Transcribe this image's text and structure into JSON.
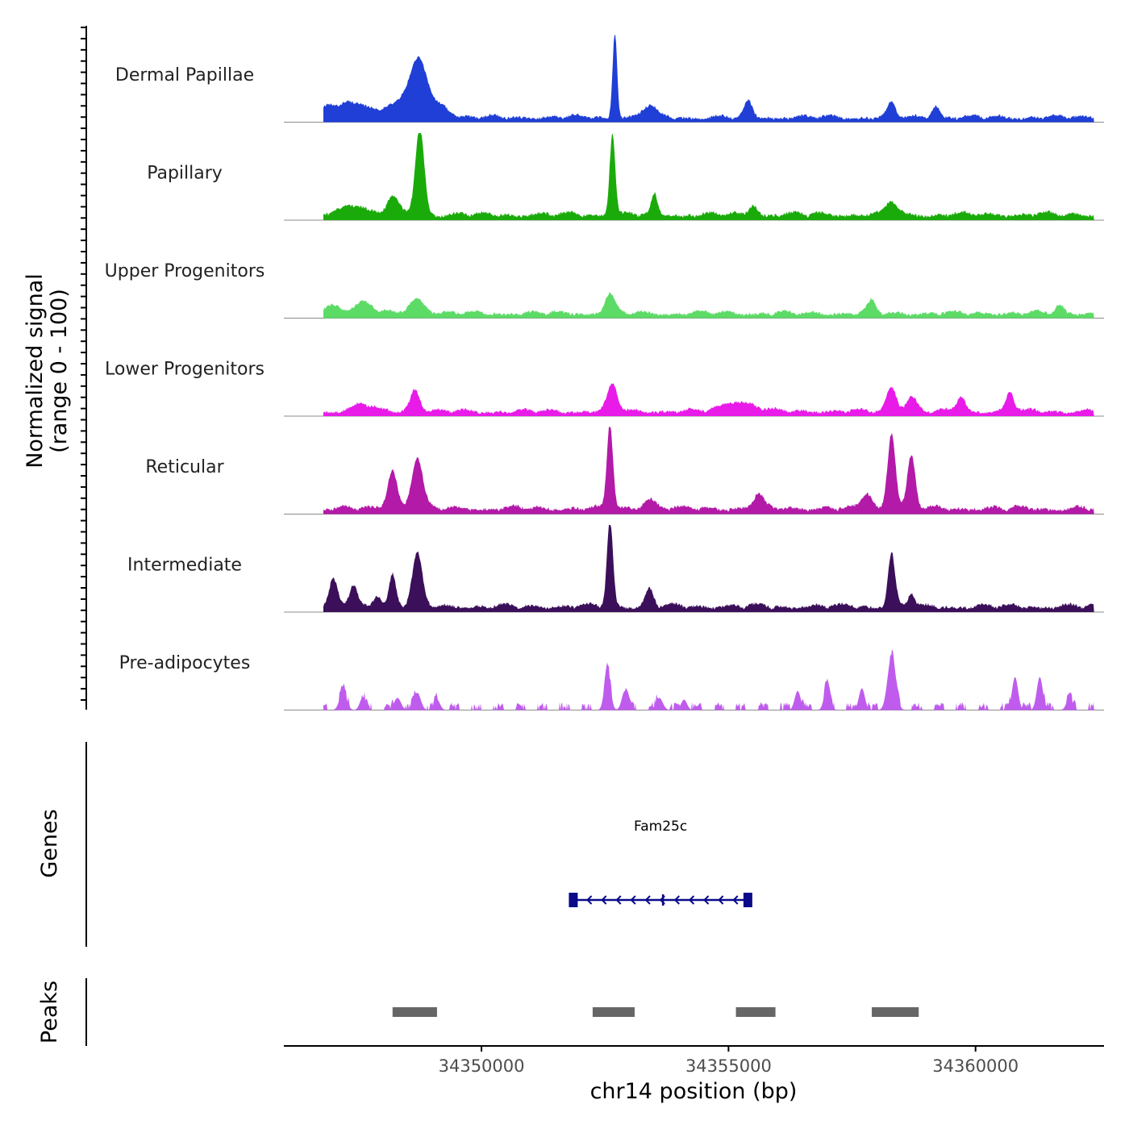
{
  "chart_data": {
    "type": "area",
    "title": "",
    "region": {
      "chromosome": "chr14",
      "start": 34346000,
      "end": 34362600,
      "data_start": 34346800,
      "data_end": 34362400
    },
    "ylabel_line1": "Normalized signal",
    "ylabel_line2": "(range 0 - 100)",
    "ylim": [
      0,
      100
    ],
    "xlabel": "chr14 position (bp)",
    "xticks": [
      34350000,
      34355000,
      34360000
    ],
    "xtick_labels": [
      "34350000",
      "34355000",
      "34360000"
    ],
    "series": [
      {
        "name": "Dermal Papillae",
        "color": "#1f3fd6",
        "baseline": 7,
        "peaks": [
          {
            "pos": 34346900,
            "height": 10,
            "width": 200
          },
          {
            "pos": 34347300,
            "height": 14,
            "width": 200
          },
          {
            "pos": 34347700,
            "height": 12,
            "width": 200
          },
          {
            "pos": 34348200,
            "height": 10,
            "width": 150
          },
          {
            "pos": 34348600,
            "height": 22,
            "width": 250
          },
          {
            "pos": 34348750,
            "height": 50,
            "width": 160
          },
          {
            "pos": 34349200,
            "height": 14,
            "width": 150
          },
          {
            "pos": 34352700,
            "height": 100,
            "width": 45
          },
          {
            "pos": 34353400,
            "height": 15,
            "width": 120
          },
          {
            "pos": 34355400,
            "height": 18,
            "width": 80
          },
          {
            "pos": 34358300,
            "height": 16,
            "width": 80
          },
          {
            "pos": 34359200,
            "height": 14,
            "width": 80
          }
        ]
      },
      {
        "name": "Papillary",
        "color": "#1aab0a",
        "baseline": 8,
        "peaks": [
          {
            "pos": 34347400,
            "height": 12,
            "width": 250
          },
          {
            "pos": 34348200,
            "height": 20,
            "width": 120
          },
          {
            "pos": 34348750,
            "height": 100,
            "width": 90
          },
          {
            "pos": 34352650,
            "height": 95,
            "width": 55
          },
          {
            "pos": 34353500,
            "height": 22,
            "width": 60
          },
          {
            "pos": 34355500,
            "height": 12,
            "width": 80
          },
          {
            "pos": 34358300,
            "height": 16,
            "width": 100
          }
        ]
      },
      {
        "name": "Upper Progenitors",
        "color": "#5cdb66",
        "baseline": 7,
        "peaks": [
          {
            "pos": 34347000,
            "height": 10,
            "width": 150
          },
          {
            "pos": 34347600,
            "height": 12,
            "width": 200
          },
          {
            "pos": 34348700,
            "height": 18,
            "width": 150
          },
          {
            "pos": 34352600,
            "height": 22,
            "width": 100
          },
          {
            "pos": 34357900,
            "height": 14,
            "width": 80
          },
          {
            "pos": 34361700,
            "height": 10,
            "width": 80
          }
        ]
      },
      {
        "name": "Lower Progenitors",
        "color": "#e81be8",
        "baseline": 7,
        "peaks": [
          {
            "pos": 34347600,
            "height": 8,
            "width": 200
          },
          {
            "pos": 34348650,
            "height": 26,
            "width": 100
          },
          {
            "pos": 34352650,
            "height": 30,
            "width": 100
          },
          {
            "pos": 34355200,
            "height": 12,
            "width": 300
          },
          {
            "pos": 34358300,
            "height": 28,
            "width": 100
          },
          {
            "pos": 34358700,
            "height": 18,
            "width": 100
          },
          {
            "pos": 34359700,
            "height": 18,
            "width": 80
          },
          {
            "pos": 34360700,
            "height": 22,
            "width": 80
          }
        ]
      },
      {
        "name": "Reticular",
        "color": "#b31aa8",
        "baseline": 8,
        "peaks": [
          {
            "pos": 34348200,
            "height": 45,
            "width": 100
          },
          {
            "pos": 34348700,
            "height": 58,
            "width": 110
          },
          {
            "pos": 34352600,
            "height": 100,
            "width": 60
          },
          {
            "pos": 34353400,
            "height": 12,
            "width": 120
          },
          {
            "pos": 34358300,
            "height": 88,
            "width": 80
          },
          {
            "pos": 34358700,
            "height": 60,
            "width": 80
          },
          {
            "pos": 34355600,
            "height": 16,
            "width": 100
          },
          {
            "pos": 34357800,
            "height": 18,
            "width": 100
          }
        ]
      },
      {
        "name": "Intermediate",
        "color": "#3b0f59",
        "baseline": 8,
        "peaks": [
          {
            "pos": 34347000,
            "height": 30,
            "width": 80
          },
          {
            "pos": 34347400,
            "height": 25,
            "width": 80
          },
          {
            "pos": 34347900,
            "height": 14,
            "width": 80
          },
          {
            "pos": 34348200,
            "height": 38,
            "width": 70
          },
          {
            "pos": 34348700,
            "height": 60,
            "width": 100
          },
          {
            "pos": 34352600,
            "height": 100,
            "width": 60
          },
          {
            "pos": 34353400,
            "height": 20,
            "width": 80
          },
          {
            "pos": 34358300,
            "height": 62,
            "width": 70
          },
          {
            "pos": 34358700,
            "height": 16,
            "width": 60
          }
        ]
      },
      {
        "name": "Pre-adipocytes",
        "color": "#bf5ced",
        "baseline": 0,
        "sparse": true,
        "peaks": [
          {
            "pos": 34347200,
            "height": 22,
            "width": 70
          },
          {
            "pos": 34347600,
            "height": 15,
            "width": 60
          },
          {
            "pos": 34348300,
            "height": 14,
            "width": 70
          },
          {
            "pos": 34348700,
            "height": 20,
            "width": 70
          },
          {
            "pos": 34349100,
            "height": 12,
            "width": 60
          },
          {
            "pos": 34352550,
            "height": 48,
            "width": 60
          },
          {
            "pos": 34352900,
            "height": 22,
            "width": 60
          },
          {
            "pos": 34353600,
            "height": 14,
            "width": 70
          },
          {
            "pos": 34354100,
            "height": 12,
            "width": 60
          },
          {
            "pos": 34356400,
            "height": 22,
            "width": 60
          },
          {
            "pos": 34357000,
            "height": 30,
            "width": 60
          },
          {
            "pos": 34357700,
            "height": 25,
            "width": 60
          },
          {
            "pos": 34358300,
            "height": 62,
            "width": 80
          },
          {
            "pos": 34360800,
            "height": 38,
            "width": 60
          },
          {
            "pos": 34361300,
            "height": 38,
            "width": 60
          },
          {
            "pos": 34361900,
            "height": 14,
            "width": 60
          }
        ]
      }
    ],
    "genes": {
      "title": "Genes",
      "items": [
        {
          "name": "Fam25c",
          "start": 34351850,
          "end": 34355400,
          "strand": "-",
          "color": "#0a0a8a"
        }
      ]
    },
    "peaks_track": {
      "title": "Peaks",
      "color": "#666666",
      "regions": [
        {
          "start": 34348200,
          "end": 34349100
        },
        {
          "start": 34352250,
          "end": 34353100
        },
        {
          "start": 34355150,
          "end": 34355950
        },
        {
          "start": 34357900,
          "end": 34358850
        }
      ]
    }
  }
}
